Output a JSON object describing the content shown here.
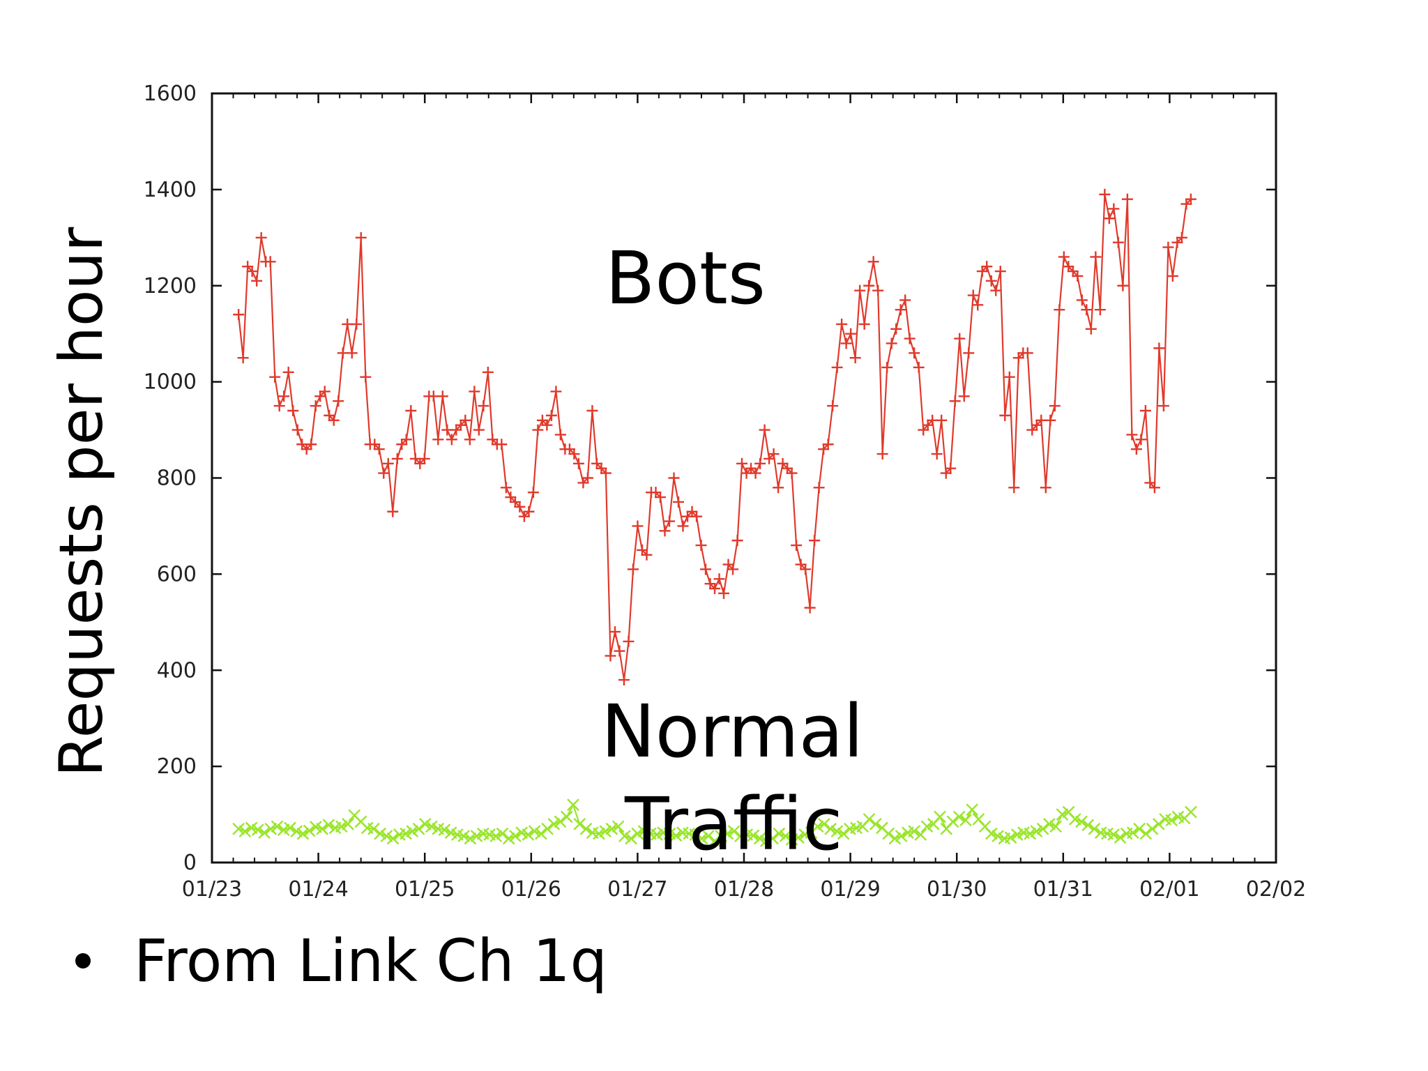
{
  "chart_data": {
    "type": "line",
    "ylabel": "Requests per hour",
    "ylim": [
      0,
      1600
    ],
    "yticks": [
      "0",
      "200",
      "400",
      "600",
      "800",
      "1000",
      "1200",
      "1400",
      "1600"
    ],
    "yvalues": [
      0,
      200,
      400,
      600,
      800,
      1000,
      1200,
      1400,
      1600
    ],
    "xlim": [
      "01/23",
      "02/02"
    ],
    "xticks": [
      "01/23",
      "01/24",
      "01/25",
      "01/26",
      "01/27",
      "01/28",
      "01/29",
      "01/30",
      "01/31",
      "02/01",
      "02/02"
    ],
    "grid": false,
    "annotations": {
      "bots": "Bots",
      "normal_line1": "Normal",
      "normal_line2": "Traffic"
    },
    "series": [
      {
        "name": "Bots",
        "color": "#e0392b",
        "marker": "+",
        "values": [
          1140,
          1050,
          1240,
          1230,
          1210,
          1300,
          1250,
          1250,
          1010,
          950,
          970,
          1020,
          940,
          900,
          870,
          860,
          870,
          950,
          970,
          980,
          930,
          920,
          960,
          1060,
          1120,
          1060,
          1120,
          1300,
          1010,
          870,
          870,
          860,
          810,
          830,
          730,
          840,
          870,
          880,
          940,
          840,
          830,
          840,
          970,
          970,
          880,
          970,
          900,
          880,
          900,
          910,
          920,
          880,
          980,
          900,
          950,
          1020,
          880,
          870,
          870,
          780,
          760,
          750,
          740,
          720,
          730,
          770,
          900,
          920,
          910,
          930,
          980,
          890,
          860,
          860,
          850,
          830,
          790,
          800,
          940,
          830,
          820,
          810,
          430,
          480,
          440,
          380,
          460,
          610,
          700,
          650,
          640,
          770,
          770,
          760,
          690,
          710,
          800,
          750,
          700,
          720,
          730,
          720,
          660,
          610,
          580,
          570,
          590,
          560,
          620,
          610,
          670,
          830,
          810,
          820,
          810,
          830,
          900,
          840,
          850,
          780,
          830,
          820,
          810,
          660,
          620,
          610,
          530,
          670,
          780,
          860,
          870,
          950,
          1030,
          1120,
          1080,
          1100,
          1050,
          1190,
          1120,
          1200,
          1250,
          1190,
          850,
          1030,
          1080,
          1110,
          1150,
          1170,
          1090,
          1060,
          1030,
          900,
          910,
          920,
          850,
          920,
          810,
          820,
          960,
          1090,
          970,
          1060,
          1180,
          1160,
          1230,
          1240,
          1210,
          1190,
          1230,
          930,
          1010,
          780,
          1050,
          1060,
          1060,
          900,
          910,
          920,
          780,
          920,
          950,
          1150,
          1260,
          1240,
          1230,
          1220,
          1170,
          1150,
          1110,
          1260,
          1150,
          1390,
          1340,
          1360,
          1290,
          1200,
          1380,
          890,
          860,
          880,
          940,
          790,
          780,
          1070,
          950,
          1280,
          1220,
          1290,
          1300,
          1370,
          1380
        ]
      },
      {
        "name": "Normal Traffic",
        "color": "#99e62a",
        "marker": "x",
        "values": [
          70,
          65,
          72,
          68,
          62,
          70,
          75,
          68,
          72,
          65,
          60,
          66,
          74,
          70,
          78,
          72,
          75,
          80,
          98,
          85,
          72,
          70,
          60,
          55,
          50,
          58,
          60,
          65,
          70,
          80,
          75,
          70,
          68,
          62,
          58,
          55,
          50,
          55,
          60,
          58,
          55,
          60,
          50,
          55,
          62,
          58,
          65,
          60,
          70,
          80,
          85,
          95,
          120,
          80,
          70,
          62,
          60,
          65,
          70,
          75,
          55,
          50,
          60,
          65,
          60,
          58,
          62,
          60,
          56,
          62,
          60,
          58,
          50,
          55,
          45,
          55,
          60,
          65,
          55,
          58,
          56,
          50,
          45,
          50,
          60,
          55,
          48,
          52,
          58,
          62,
          75,
          80,
          70,
          65,
          60,
          70,
          72,
          75,
          90,
          80,
          72,
          60,
          50,
          55,
          62,
          65,
          58,
          75,
          80,
          95,
          70,
          85,
          95,
          88,
          110,
          90,
          75,
          60,
          55,
          50,
          52,
          58,
          62,
          60,
          65,
          70,
          80,
          75,
          100,
          105,
          90,
          85,
          78,
          70,
          62,
          60,
          58,
          52,
          60,
          62,
          70,
          60,
          70,
          80,
          90,
          88,
          95,
          92,
          105
        ]
      }
    ]
  },
  "footer": {
    "bullet_text": "From Link Ch 1q"
  }
}
